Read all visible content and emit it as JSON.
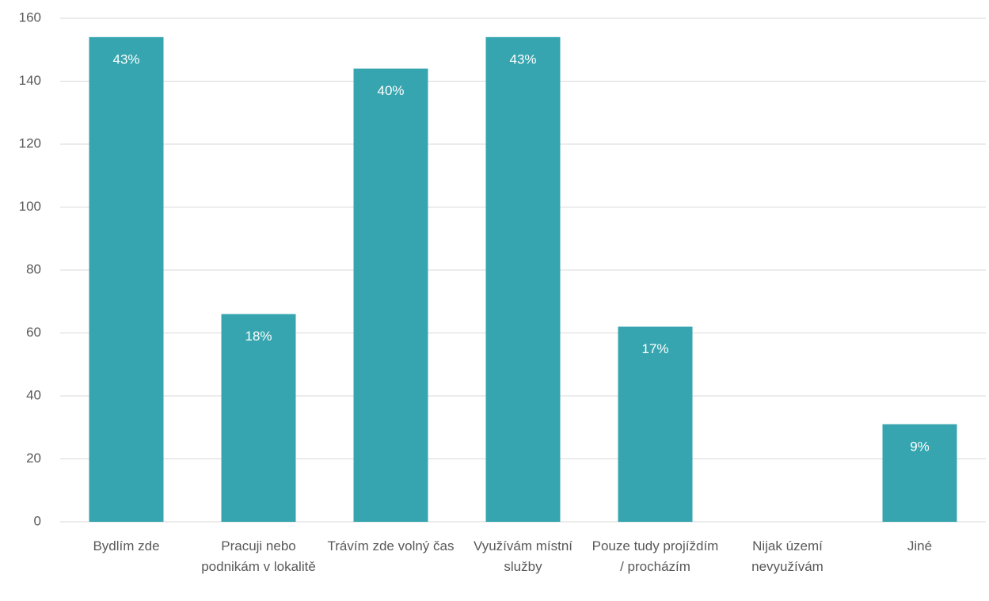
{
  "chart_data": {
    "type": "bar",
    "categories": [
      "Bydlím zde",
      "Pracuji nebo podnikám v lokalitě",
      "Trávím zde volný čas",
      "Využívám místní služby",
      "Pouze tudy projíždím / procházím",
      "Nijak území nevyužívám",
      "Jiné"
    ],
    "values": [
      154,
      66,
      144,
      154,
      62,
      0,
      31
    ],
    "percent_labels": [
      "43%",
      "18%",
      "40%",
      "43%",
      "17%",
      null,
      "9%"
    ],
    "color": "#36a5af",
    "ylim": [
      0,
      160
    ],
    "yticks": [
      0,
      20,
      40,
      60,
      80,
      100,
      120,
      140,
      160
    ],
    "grid": true
  }
}
